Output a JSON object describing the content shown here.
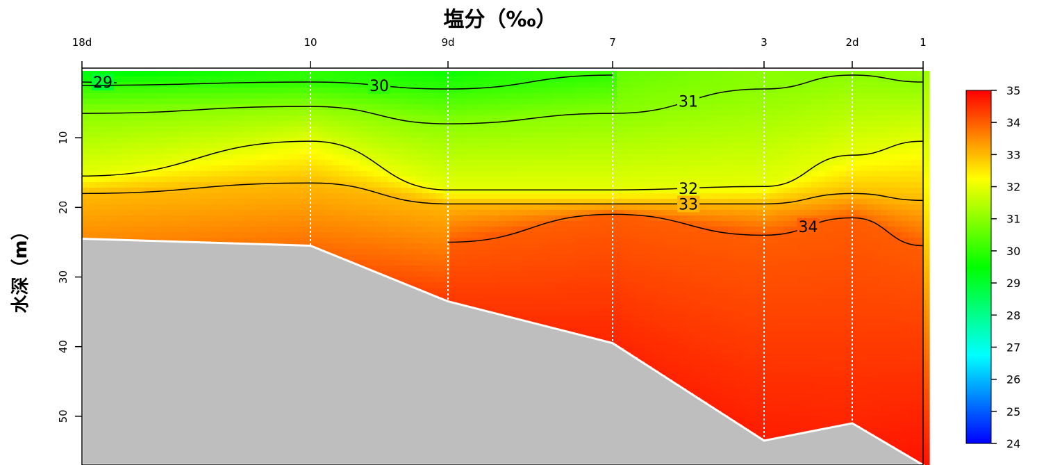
{
  "chart_data": {
    "type": "heatmap",
    "title": "塩分（‰）",
    "xlabel": "",
    "ylabel": "水深（m）",
    "stations": [
      "18d",
      "10",
      "9d",
      "7",
      "3",
      "2d",
      "1"
    ],
    "ylim": [
      0,
      57
    ],
    "yticks": [
      10,
      20,
      30,
      40,
      50
    ],
    "colorbar": {
      "ticks": [
        35,
        34,
        33,
        32,
        31,
        30,
        29,
        28,
        27,
        26,
        25,
        24
      ],
      "range": [
        24,
        35
      ]
    },
    "bottom_depth": [
      24.5,
      25.5,
      33.5,
      39.5,
      53.5,
      51.0,
      57.0
    ],
    "contours": [
      {
        "level": 29,
        "label": "29",
        "depths": [
          2.0,
          null,
          null,
          null,
          null,
          null,
          null
        ]
      },
      {
        "level": 30,
        "label": "30",
        "depths": [
          2.5,
          2.0,
          3.0,
          1.0,
          null,
          null,
          null
        ]
      },
      {
        "level": 31,
        "label": "31",
        "depths": [
          6.5,
          5.5,
          8.0,
          6.5,
          3.0,
          1.0,
          2.0
        ]
      },
      {
        "level": 32,
        "label": "32",
        "depths": [
          15.5,
          10.5,
          17.5,
          17.5,
          17.0,
          12.5,
          10.5
        ]
      },
      {
        "level": 33,
        "label": "33",
        "depths": [
          18.0,
          16.5,
          19.5,
          19.5,
          19.5,
          18.0,
          19.0
        ]
      },
      {
        "level": 34,
        "label": "34",
        "depths": [
          null,
          null,
          25.0,
          21.0,
          24.0,
          21.5,
          25.5
        ]
      }
    ],
    "surface_salinity": [
      29.0,
      30.0,
      29.5,
      30.5,
      31.0,
      30.8,
      31.2
    ],
    "bottom_salinity": [
      33.5,
      33.8,
      34.4,
      34.6,
      34.7,
      34.6,
      34.8
    ]
  }
}
